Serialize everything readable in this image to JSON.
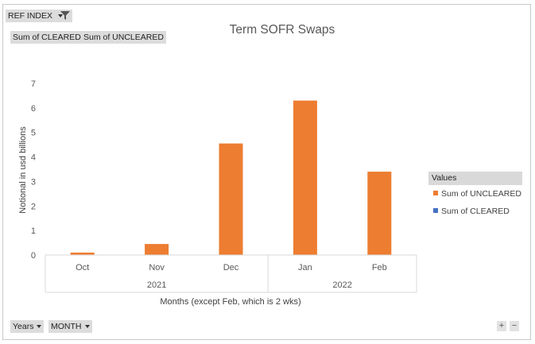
{
  "filters": {
    "ref_index": "REF INDEX",
    "values_buttons": [
      "Sum of CLEARED",
      "Sum of UNCLEARED"
    ]
  },
  "axis_buttons": [
    "Years",
    "MONTH"
  ],
  "zoom_controls": {
    "plus": "+",
    "minus": "−"
  },
  "legend": {
    "header": "Values",
    "items": [
      {
        "label": "Sum of UNCLEARED",
        "color": "#ED7D31"
      },
      {
        "label": "Sum of CLEARED",
        "color": "#4472C4"
      }
    ]
  },
  "chart_data": {
    "type": "bar",
    "title": "Term SOFR Swaps",
    "xlabel": "Months (except Feb, which is 2 wks)",
    "ylabel": "Notional in usd billions",
    "categories": [
      "Oct",
      "Nov",
      "Dec",
      "Jan",
      "Feb"
    ],
    "category_groups": [
      {
        "label": "2021",
        "categories": [
          "Oct",
          "Nov",
          "Dec"
        ]
      },
      {
        "label": "2022",
        "categories": [
          "Jan",
          "Feb"
        ]
      }
    ],
    "series": [
      {
        "name": "Sum of UNCLEARED",
        "color": "#ED7D31",
        "values": [
          0.1,
          0.45,
          4.55,
          6.3,
          3.4
        ]
      },
      {
        "name": "Sum of CLEARED",
        "color": "#4472C4",
        "values": [
          0,
          0,
          0,
          0,
          0
        ]
      }
    ],
    "ylim": [
      0,
      7
    ],
    "yticks": [
      0,
      1,
      2,
      3,
      4,
      5,
      6,
      7
    ],
    "grid": false,
    "legend_position": "right"
  }
}
